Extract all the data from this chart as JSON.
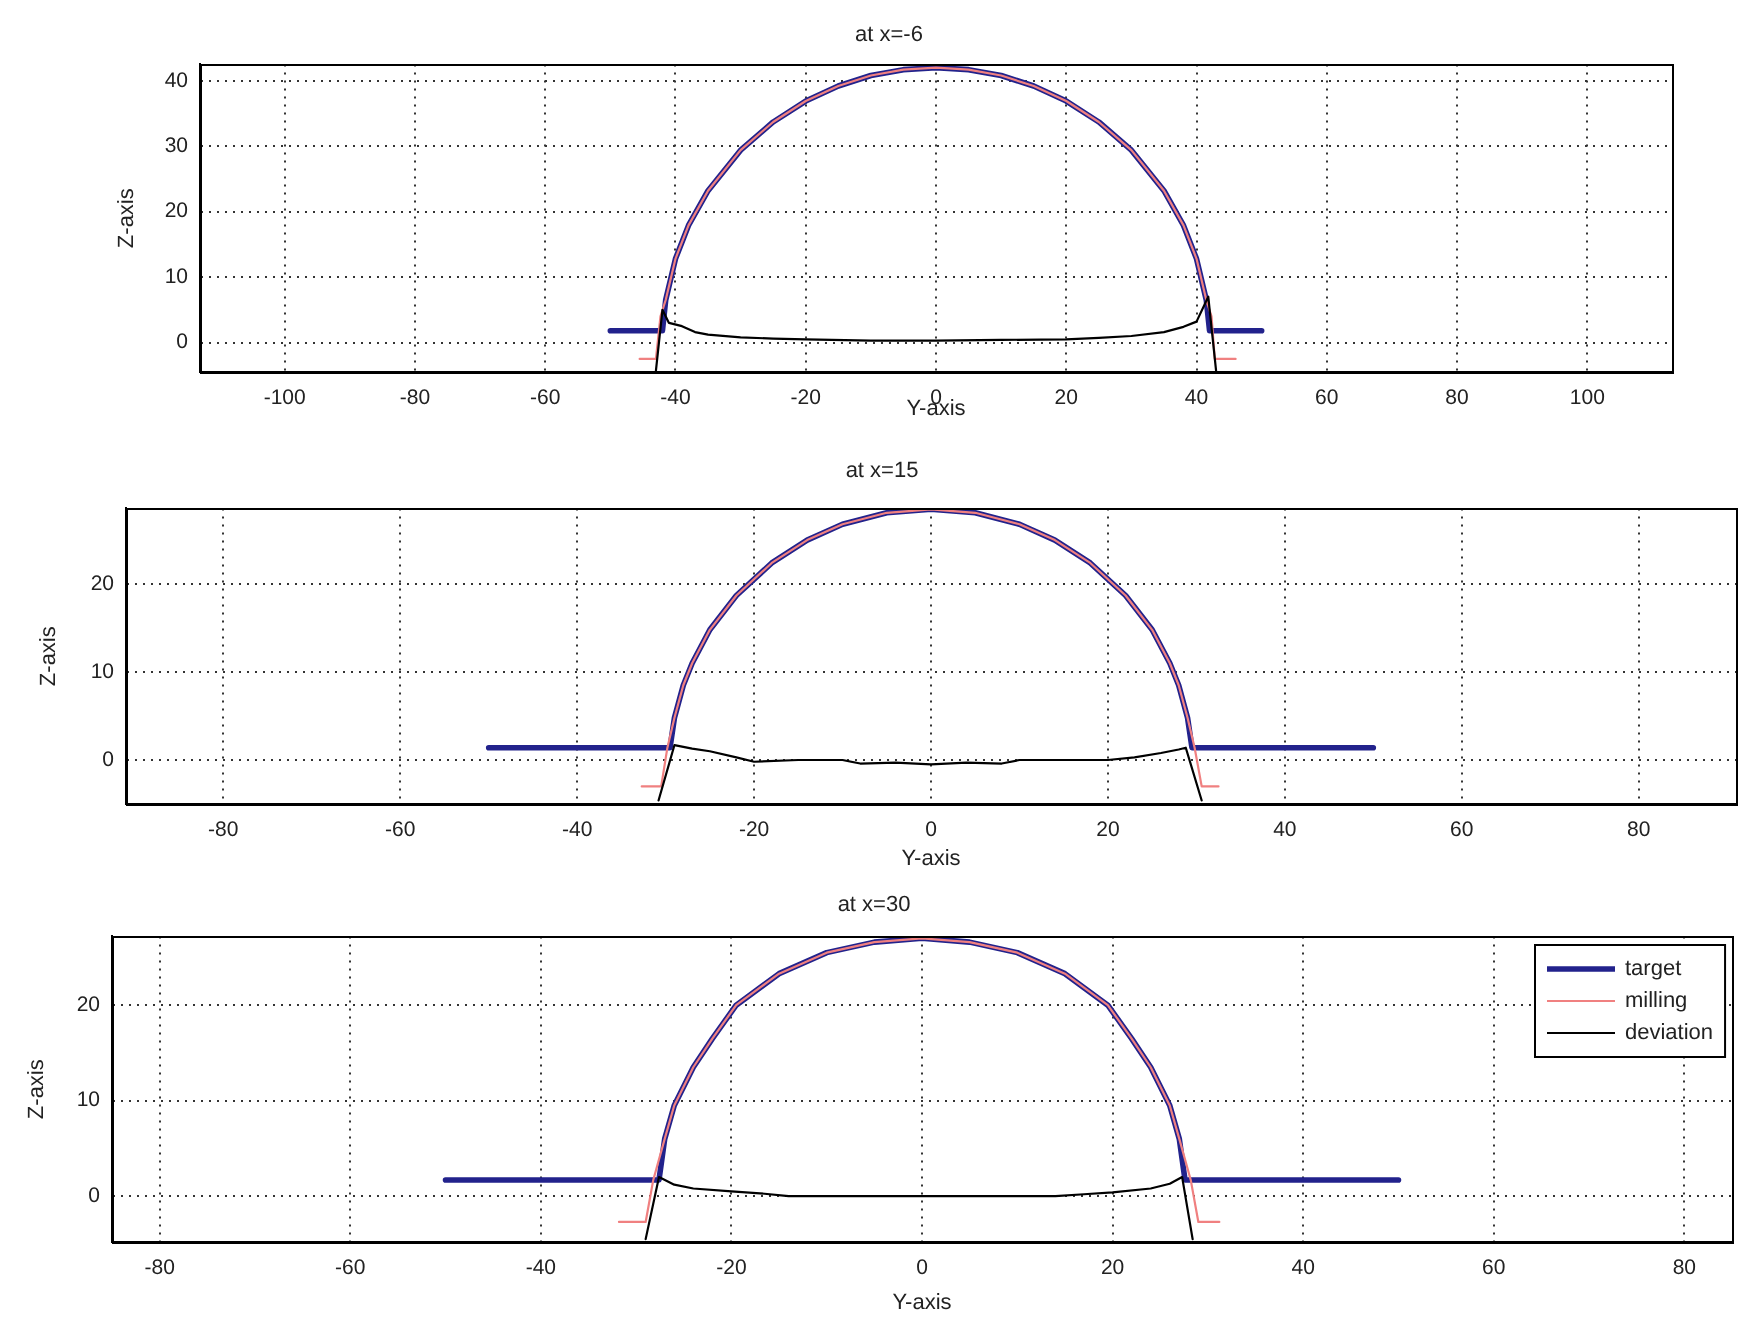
{
  "chart_data": [
    {
      "type": "line",
      "title": "at x=-6",
      "xlabel": "Y-axis",
      "ylabel": "Z-axis",
      "xlim": [
        -113,
        113
      ],
      "ylim": [
        -4.5,
        42.5
      ],
      "xticks": [
        -100,
        -80,
        -60,
        -40,
        -20,
        0,
        20,
        40,
        60,
        80,
        100
      ],
      "yticks": [
        0,
        10,
        20,
        30,
        40
      ],
      "grid": true,
      "series": [
        {
          "color": "#22228c",
          "x": [
            -50,
            -42,
            -41.5,
            -40,
            -38,
            -35,
            -30,
            -25,
            -20,
            -15,
            -10,
            -5,
            0,
            5,
            10,
            15,
            20,
            25,
            30,
            35,
            38,
            40,
            41.5,
            42,
            50
          ],
          "values": [
            1.8,
            1.8,
            6.5,
            12.8,
            17.9,
            23.2,
            29.4,
            33.7,
            36.9,
            39.2,
            40.8,
            41.7,
            42,
            41.7,
            40.8,
            39.2,
            36.9,
            33.7,
            29.4,
            23.2,
            17.9,
            12.8,
            6.5,
            1.8,
            1.8
          ]
        },
        {
          "color": "#f08080",
          "x": [
            -45.5,
            -43,
            -42.3,
            -41.5,
            -40,
            -38,
            -35,
            -30,
            -25,
            -20,
            -15,
            -10,
            -5,
            0,
            5,
            10,
            15,
            20,
            25,
            30,
            35,
            38,
            40,
            41.5,
            42.3,
            42.8,
            46
          ],
          "values": [
            -2.5,
            -2.5,
            4,
            6.5,
            12.8,
            17.9,
            23.2,
            29.4,
            33.7,
            36.9,
            39.2,
            40.8,
            41.7,
            42,
            41.7,
            40.8,
            39.2,
            36.9,
            33.7,
            29.4,
            23.2,
            17.9,
            12.8,
            6.5,
            4,
            -2.5,
            -2.5
          ]
        },
        {
          "color": "#000000",
          "x": [
            -43,
            -42,
            -41,
            -39,
            -37,
            -35,
            -30,
            -25,
            -20,
            -10,
            0,
            10,
            20,
            25,
            30,
            35,
            38,
            40,
            41.8,
            43
          ],
          "values": [
            -4.3,
            5,
            3,
            2.5,
            1.6,
            1.2,
            0.8,
            0.6,
            0.5,
            0.3,
            0.3,
            0.4,
            0.5,
            0.7,
            1,
            1.6,
            2.4,
            3.2,
            7,
            -4.3
          ]
        }
      ]
    },
    {
      "type": "line",
      "title": "at x=15",
      "xlabel": "Y-axis",
      "ylabel": "Z-axis",
      "xlim": [
        -91,
        91
      ],
      "ylim": [
        -5,
        28.6
      ],
      "xticks": [
        -80,
        -60,
        -40,
        -20,
        0,
        20,
        40,
        60,
        80
      ],
      "yticks": [
        0,
        10,
        20
      ],
      "grid": true,
      "series": [
        {
          "color": "#22228c",
          "x": [
            -50,
            -29.5,
            -29,
            -28,
            -27,
            -25,
            -22,
            -18,
            -14,
            -10,
            -5,
            0,
            5,
            10,
            14,
            18,
            22,
            25,
            27,
            28,
            29,
            29.5,
            50
          ],
          "values": [
            1.4,
            1.4,
            4.8,
            8.5,
            11,
            14.8,
            18.7,
            22.4,
            25,
            26.8,
            28.1,
            28.5,
            28.1,
            26.8,
            25,
            22.4,
            18.7,
            14.8,
            11,
            8.5,
            4.8,
            1.4,
            1.4
          ]
        },
        {
          "color": "#f08080",
          "x": [
            -32.7,
            -30.5,
            -29.8,
            -29,
            -28,
            -27,
            -25,
            -22,
            -18,
            -14,
            -10,
            -5,
            0,
            5,
            10,
            14,
            18,
            22,
            25,
            27,
            28,
            29,
            29.8,
            30.6,
            32.5
          ],
          "values": [
            -3,
            -3,
            1.4,
            4.8,
            8.5,
            11,
            14.8,
            18.7,
            22.4,
            25,
            26.8,
            28.1,
            28.5,
            28.1,
            26.8,
            25,
            22.4,
            18.7,
            14.8,
            11,
            8.5,
            4.8,
            1.4,
            -3,
            -3
          ]
        },
        {
          "color": "#000000",
          "x": [
            -30.8,
            -29,
            -27,
            -25,
            -22,
            -20,
            -15,
            -10,
            -8,
            -4,
            0,
            4,
            8,
            10,
            15,
            20,
            23,
            26,
            28,
            28.8,
            30.6
          ],
          "values": [
            -4.6,
            1.7,
            1.3,
            1,
            0.3,
            -0.2,
            0,
            0,
            -0.4,
            -0.3,
            -0.5,
            -0.3,
            -0.4,
            0,
            0,
            0,
            0.3,
            0.8,
            1.2,
            1.4,
            -4.6
          ]
        }
      ]
    },
    {
      "type": "line",
      "title": "at x=30",
      "xlabel": "Y-axis",
      "ylabel": "Z-axis",
      "xlim": [
        -85,
        85
      ],
      "ylim": [
        -4.8,
        27.2
      ],
      "xticks": [
        -80,
        -60,
        -40,
        -20,
        0,
        20,
        40,
        60,
        80
      ],
      "yticks": [
        0,
        10,
        20
      ],
      "grid": true,
      "legend": "top right",
      "series": [
        {
          "name": "target",
          "color": "#22228c",
          "x": [
            -50,
            -27.6,
            -27,
            -26,
            -24,
            -22,
            -19.5,
            -15,
            -10,
            -5,
            0,
            5,
            10,
            15,
            19.5,
            22,
            24,
            26,
            27,
            27.6,
            50
          ],
          "values": [
            1.7,
            1.7,
            6,
            9.5,
            13.5,
            16.5,
            20,
            23.3,
            25.5,
            26.6,
            27,
            26.6,
            25.5,
            23.3,
            20,
            16.5,
            13.5,
            9.5,
            6,
            1.7,
            1.7
          ]
        },
        {
          "name": "milling",
          "color": "#f08080",
          "x": [
            -31.8,
            -29,
            -28.2,
            -27,
            -26,
            -24,
            -22,
            -19.5,
            -15,
            -10,
            -5,
            0,
            5,
            10,
            15,
            19.5,
            22,
            24,
            26,
            27,
            28.2,
            29,
            31.2
          ],
          "values": [
            -2.7,
            -2.7,
            1.7,
            6,
            9.5,
            13.5,
            16.5,
            20,
            23.3,
            25.5,
            26.6,
            27,
            26.6,
            25.5,
            23.3,
            20,
            16.5,
            13.5,
            9.5,
            6,
            1.7,
            -2.7,
            -2.7
          ]
        },
        {
          "name": "deviation",
          "color": "#000000",
          "x": [
            -29,
            -27.6,
            -26,
            -24,
            -20,
            -17,
            -14,
            0,
            14,
            17,
            20,
            24,
            26,
            27.3,
            28.4
          ],
          "values": [
            -4.5,
            2,
            1.2,
            0.8,
            0.5,
            0.3,
            0,
            0,
            0,
            0.2,
            0.4,
            0.8,
            1.3,
            2,
            -4.5
          ]
        }
      ]
    }
  ]
}
